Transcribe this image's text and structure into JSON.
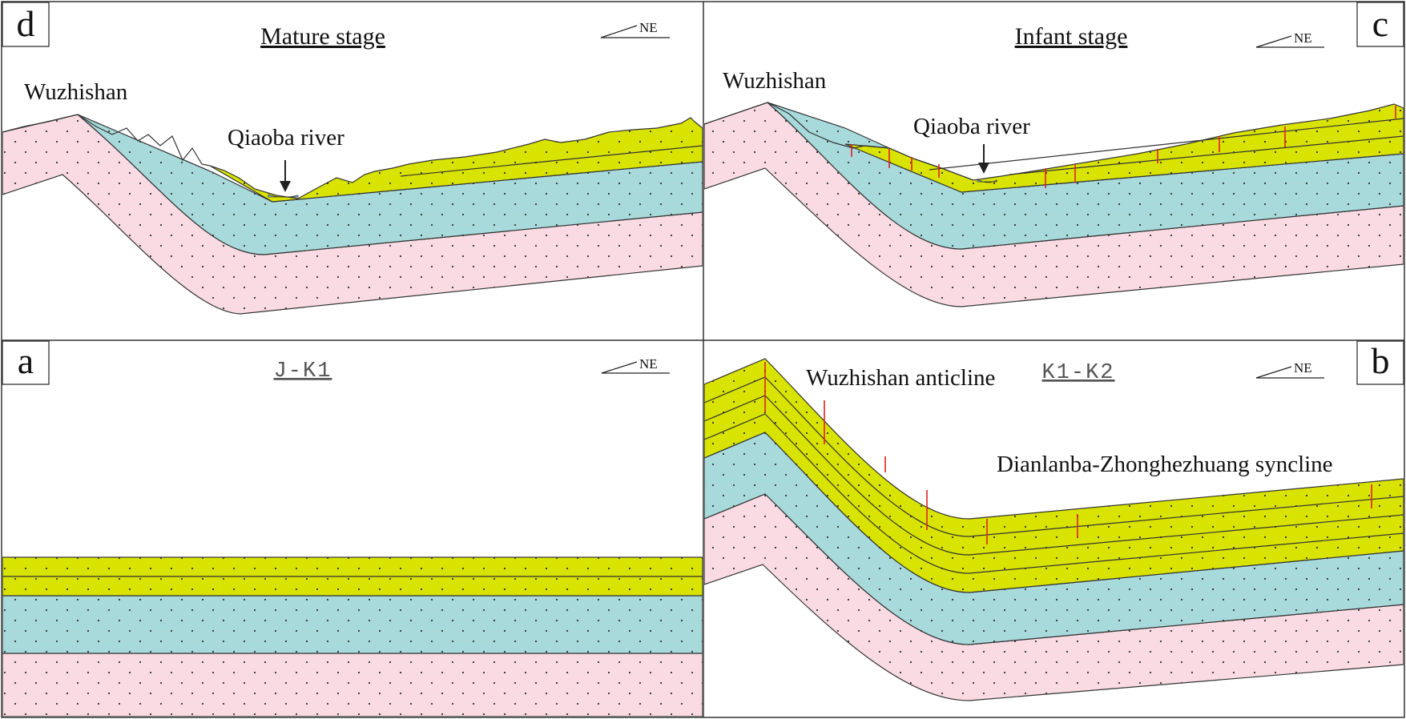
{
  "colors": {
    "yellow_layer": "#d9e300",
    "blue_layer": "#a8dadb",
    "pink_layer": "#fadbe3",
    "fracture": "#e02020",
    "water": "#8fc8ea",
    "stroke": "#333333"
  },
  "panels": {
    "d": {
      "letter": "d",
      "title": "Mature stage",
      "orientation": "NE",
      "labels": {
        "mountain": "Wuzhishan",
        "river": "Qiaoba river"
      }
    },
    "c": {
      "letter": "c",
      "title": "Infant stage",
      "orientation": "NE",
      "labels": {
        "mountain": "Wuzhishan",
        "river": "Qiaoba river"
      }
    },
    "a": {
      "letter": "a",
      "title": "J-K1",
      "orientation": "NE"
    },
    "b": {
      "letter": "b",
      "title": "K1-K2",
      "orientation": "NE",
      "labels": {
        "anticline": "Wuzhishan anticline",
        "syncline": "Dianlanba-Zhonghezhuang syncline"
      }
    }
  }
}
